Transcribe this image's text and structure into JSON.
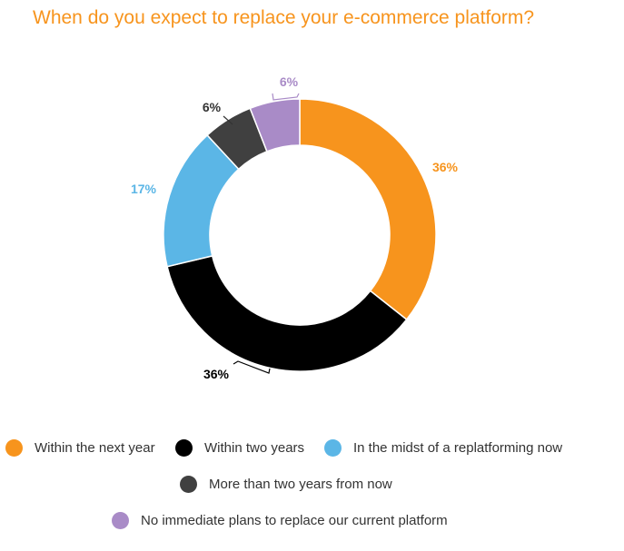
{
  "title": "When do you expect to replace your e-commerce platform?",
  "chart_data": {
    "type": "pie",
    "donut": true,
    "title": "When do you expect to replace your e-commerce platform?",
    "categories": [
      "Within the next year",
      "Within two years",
      "In the midst of a replatforming now",
      "More than two years from now",
      "No immediate plans to replace our current platform"
    ],
    "values": [
      36,
      36,
      17,
      6,
      6
    ],
    "value_labels": [
      "36%",
      "36%",
      "17%",
      "6%",
      "6%"
    ],
    "colors": [
      "#f7941d",
      "#000000",
      "#5bb6e6",
      "#404040",
      "#a98bc7"
    ],
    "label_colors": [
      "#f7941d",
      "#000000",
      "#5bb6e6",
      "#333333",
      "#a98bc7"
    ],
    "legend_position": "bottom"
  },
  "legend": [
    {
      "label": "Within the next year",
      "color": "#f7941d"
    },
    {
      "label": "Within two years",
      "color": "#000000"
    },
    {
      "label": "In the midst of a replatforming now",
      "color": "#5bb6e6"
    },
    {
      "label": "More than two years from now",
      "color": "#404040"
    },
    {
      "label": "No immediate plans to replace our current platform",
      "color": "#a98bc7"
    }
  ]
}
